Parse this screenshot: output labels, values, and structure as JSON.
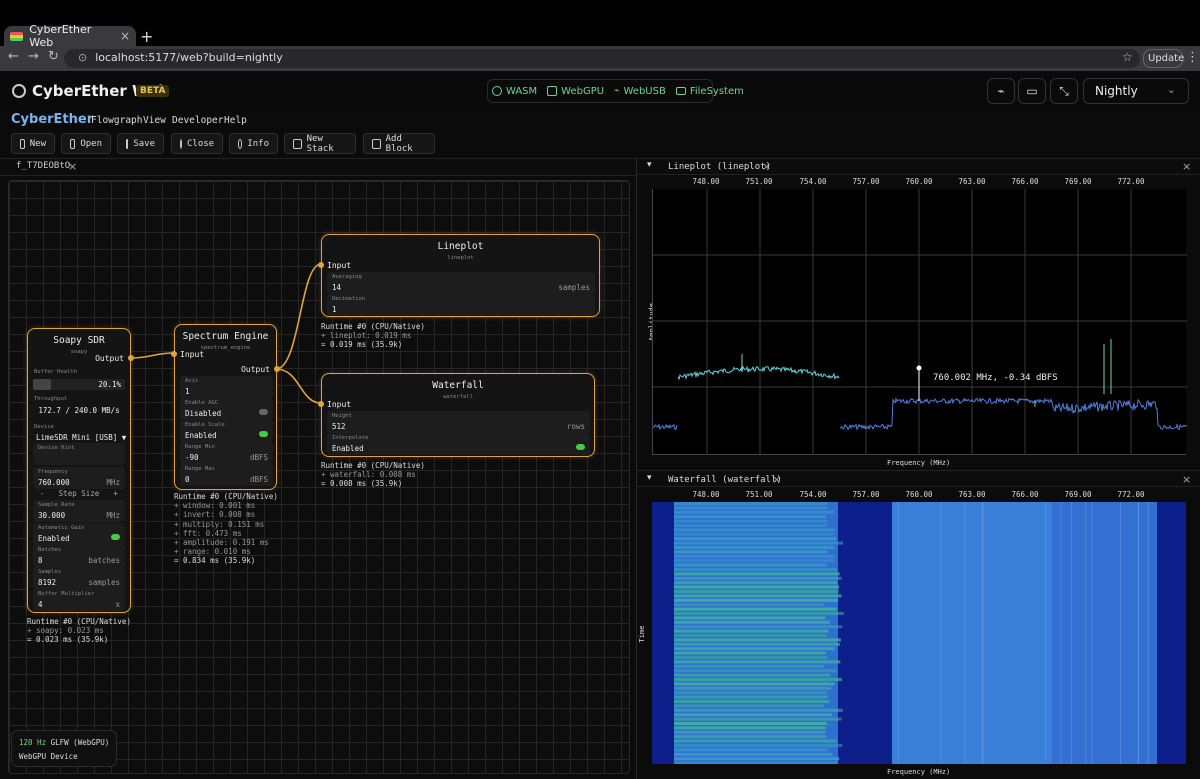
{
  "browser": {
    "tab_title": "CyberEther Web",
    "url": "localhost:5177/web?build=nightly",
    "update_label": "Update"
  },
  "header": {
    "app_name": "CyberEther Web",
    "badge": "BETA",
    "capabilities": [
      "WASM",
      "WebGPU",
      "WebUSB",
      "FileSystem"
    ],
    "build_select": "Nightly"
  },
  "menu": {
    "brand": "CyberEther",
    "items": [
      "Flowgraph",
      "View",
      "Developer",
      "Help"
    ]
  },
  "toolbar": {
    "buttons": [
      "New",
      "Open",
      "Save",
      "Close",
      "Info",
      "New Stack",
      "Add Block"
    ]
  },
  "flowgraph": {
    "tab": "f_T7DEOBtO",
    "nodes": {
      "soapy": {
        "title": "Soapy SDR",
        "subtitle": "soapy",
        "output": "Output",
        "buffer_health_label": "Buffer Health",
        "buffer_health": "20.1%",
        "buffer_health_fraction": 0.201,
        "throughput_label": "Throughput",
        "throughput": "172.7 / 240.0 MB/s",
        "device_label": "Device",
        "device": "LimeSDR Mini [USB]",
        "device_hint_label": "Device Hint",
        "frequency_label": "Frequency",
        "frequency": "760.000",
        "frequency_unit": "MHz",
        "step_minus": "-",
        "step_label": "Step Size",
        "step_plus": "+",
        "sample_rate_label": "Sample Rate",
        "sample_rate": "30.000",
        "sample_rate_unit": "MHz",
        "agc_label": "Automatic Gain",
        "agc": "Enabled",
        "batches_label": "Batches",
        "batches": "8",
        "batches_unit": "batches",
        "samples_label": "Samples",
        "samples": "8192",
        "samples_unit": "samples",
        "buffer_mult_label": "Buffer Multiplier",
        "buffer_mult": "4",
        "buffer_mult_unit": "x",
        "runtime": [
          "Runtime #0 (CPU/Native)",
          "+ soapy: 0.023 ms",
          "= 0.023 ms (35.9k)"
        ]
      },
      "spectrum": {
        "title": "Spectrum Engine",
        "subtitle": "spectrum_engine",
        "input": "Input",
        "output": "Output",
        "axis_label": "Axis",
        "axis": "1",
        "agc_label": "Enable AGC",
        "agc": "Disabled",
        "scale_label": "Enable Scale",
        "scale": "Enabled",
        "range_min_label": "Range Min",
        "range_min": "-90",
        "range_min_unit": "dBFS",
        "range_max_label": "Range Max",
        "range_max": "0",
        "range_max_unit": "dBFS",
        "runtime": [
          "Runtime #0 (CPU/Native)",
          "+ window: 0.001 ms",
          "+ invert: 0.008 ms",
          "+ multiply: 0.151 ms",
          "+ fft: 0.473 ms",
          "+ amplitude: 0.191 ms",
          "+ range: 0.010 ms",
          "= 0.834 ms (35.9k)"
        ]
      },
      "lineplot": {
        "title": "Lineplot",
        "subtitle": "lineplot",
        "input": "Input",
        "averaging_label": "Averaging",
        "averaging": "14",
        "averaging_unit": "samples",
        "decimation_label": "Decimation",
        "decimation": "1",
        "runtime": [
          "Runtime #0 (CPU/Native)",
          "+ lineplot: 0.019 ms",
          "= 0.019 ms (35.9k)"
        ]
      },
      "waterfall": {
        "title": "Waterfall",
        "subtitle": "waterfall",
        "input": "Input",
        "height_label": "Height",
        "height": "512",
        "height_unit": "rows",
        "interpolate_label": "Interpolate",
        "interpolate": "Enabled",
        "runtime": [
          "Runtime #0 (CPU/Native)",
          "+ waterfall: 0.008 ms",
          "= 0.008 ms (35.9k)"
        ]
      }
    },
    "status": {
      "hz": "120 Hz",
      "backend": "GLFW (WebGPU)",
      "device": "WebGPU Device"
    }
  },
  "plots": {
    "lineplot_title": "Lineplot (lineplot)",
    "waterfall_title": "Waterfall (waterfall)",
    "freq_ticks": [
      "748.00",
      "751.00",
      "754.00",
      "757.00",
      "760.00",
      "763.00",
      "766.00",
      "769.00",
      "772.00"
    ],
    "xlabel": "Frequency (MHz)",
    "ylabel": "Amplitude (dBFS)",
    "time_label": "Time",
    "cursor_readout": "760.002 MHz, -0.34 dBFS",
    "colors": {
      "accent": "#e0a53a",
      "trace_left": "#5fd4d9",
      "trace": "#4f7fe0",
      "wf_bg": "#0d1f8a",
      "wf_hot": "#3fb69a"
    }
  }
}
